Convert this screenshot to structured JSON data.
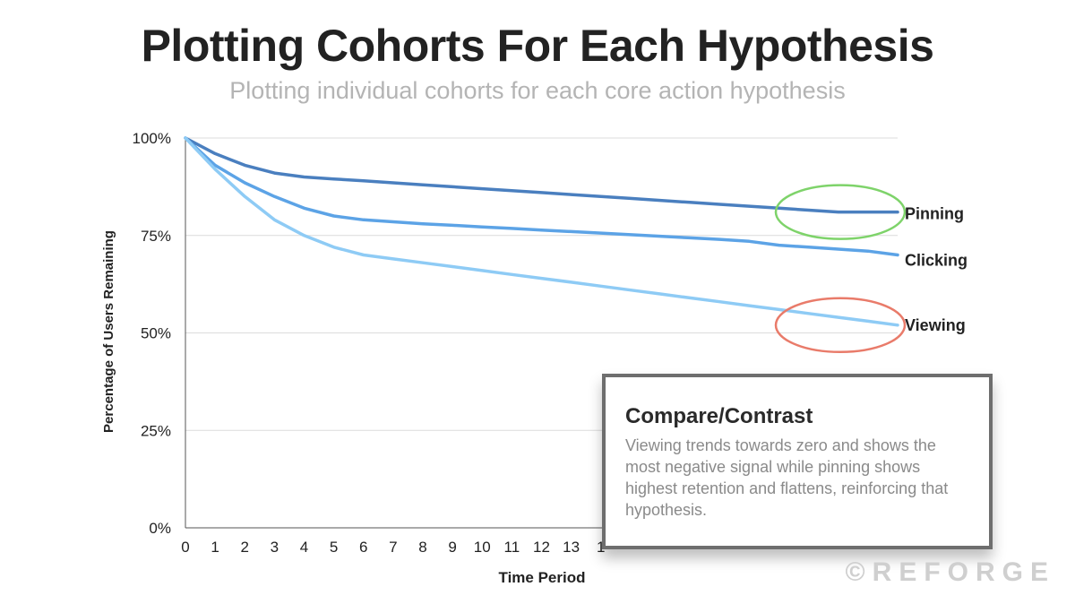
{
  "title": "Plotting Cohorts For Each Hypothesis",
  "subtitle": "Plotting individual cohorts for each core action hypothesis",
  "chart_data": {
    "type": "line",
    "xlabel": "Time Period",
    "ylabel": "Percentage of Users Remaining",
    "xlim": [
      0,
      24
    ],
    "ylim": [
      0,
      100
    ],
    "y_ticks": [
      "0%",
      "25%",
      "50%",
      "75%",
      "100%"
    ],
    "x_ticks_visible": [
      "0",
      "1",
      "2",
      "3",
      "4",
      "5",
      "6",
      "7",
      "8",
      "9",
      "10",
      "11",
      "12",
      "13",
      "1"
    ],
    "grid": true,
    "x": [
      0,
      1,
      2,
      3,
      4,
      5,
      6,
      7,
      8,
      9,
      10,
      11,
      12,
      13,
      14,
      15,
      16,
      17,
      18,
      19,
      20,
      21,
      22,
      23,
      24
    ],
    "series": [
      {
        "name": "Pinning",
        "color": "#4a7fbf",
        "values": [
          100,
          96,
          93,
          91,
          90,
          89.5,
          89,
          88.5,
          88,
          87.5,
          87,
          86.5,
          86,
          85.5,
          85,
          84.5,
          84,
          83.5,
          83,
          82.5,
          82,
          81.5,
          81,
          81,
          81
        ]
      },
      {
        "name": "Clicking",
        "color": "#5ca3e6",
        "values": [
          100,
          93,
          88.5,
          85,
          82,
          80,
          79,
          78.5,
          78,
          77.6,
          77.2,
          76.8,
          76.4,
          76,
          75.6,
          75.2,
          74.8,
          74.4,
          74,
          73.5,
          72.5,
          72,
          71.5,
          71,
          70
        ]
      },
      {
        "name": "Viewing",
        "color": "#8ecbf5",
        "values": [
          100,
          92,
          85,
          79,
          75,
          72,
          70,
          69,
          68,
          67,
          66,
          65,
          64,
          63,
          62,
          61,
          60,
          59,
          58,
          57,
          56,
          55,
          54,
          53,
          52
        ]
      }
    ]
  },
  "highlights": [
    {
      "series": "Pinning",
      "color": "#7ed36a"
    },
    {
      "series": "Viewing",
      "color": "#e97b6a"
    }
  ],
  "callout": {
    "title": "Compare/Contrast",
    "body": "Viewing trends towards zero and shows the most negative signal while pinning shows highest retention and flattens, reinforcing that hypothesis."
  },
  "watermark": "©REFORGE"
}
